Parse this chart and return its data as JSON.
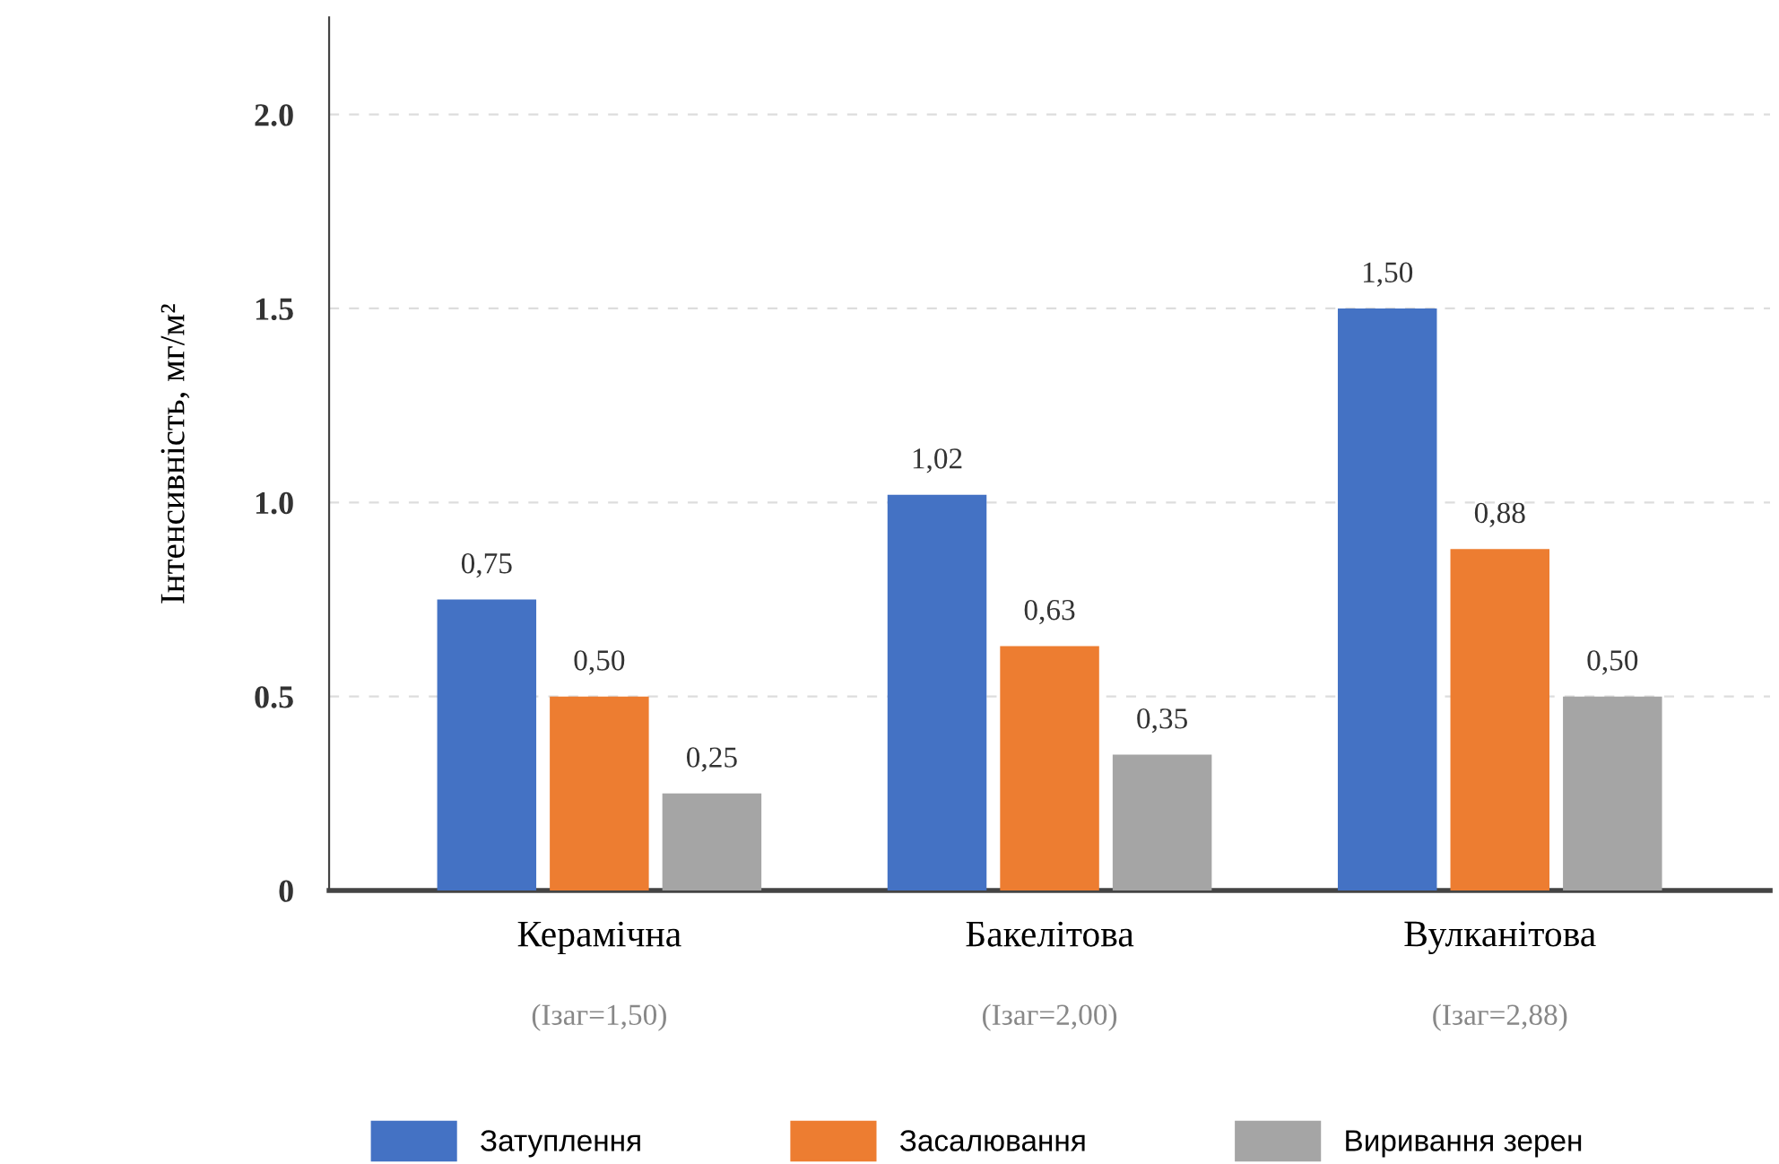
{
  "chart_data": {
    "type": "bar",
    "ylabel": "Інтенсивність, мг/м²",
    "categories": [
      "Керамічна\n(Ізаг=1,50)",
      "Бакелітова\n(Ізаг=2,00)",
      "Вулканітова\n(Ізаг=2,88)"
    ],
    "series": [
      {
        "name": "Затуплення",
        "color": "#4472c4",
        "values": [
          0.75,
          1.02,
          1.5
        ],
        "value_labels": [
          "0,75",
          "1,02",
          "1,50"
        ]
      },
      {
        "name": "Засалювання",
        "color": "#ed7d31",
        "values": [
          0.5,
          0.63,
          0.88
        ],
        "value_labels": [
          "0,50",
          "0,63",
          "0,88"
        ]
      },
      {
        "name": "Виривання зерен",
        "color": "#a5a5a5",
        "values": [
          0.25,
          0.35,
          0.5
        ],
        "value_labels": [
          "0,25",
          "0,35",
          "0,50"
        ]
      }
    ],
    "ylim": [
      0,
      2.25
    ],
    "yticks": [
      0,
      {
        "value": 0.5,
        "label": "0.5"
      },
      {
        "value": 1,
        "label": "1.0"
      },
      {
        "value": 1.5,
        "label": "1.5"
      },
      {
        "value": 2,
        "label": "2.0"
      }
    ],
    "grid": "y",
    "legend": "bottom"
  }
}
